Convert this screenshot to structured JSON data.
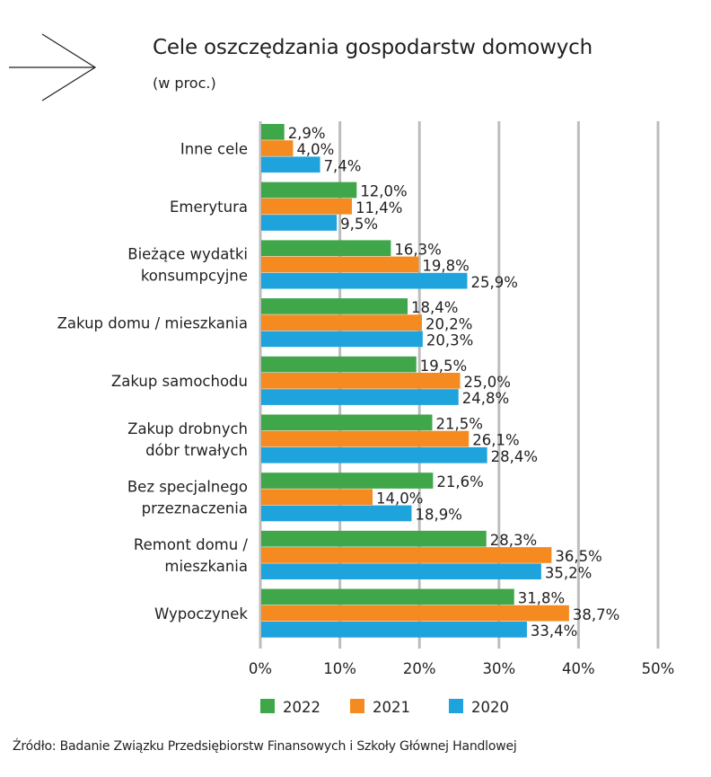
{
  "header": {
    "title": "Cele oszczędzania gospodarstw domowych",
    "subtitle": "(w proc.)",
    "icon": "arrow-right-icon"
  },
  "source": "Źródło: Badanie Związku Przedsiębiorstw Finansowych i Szkoły Głównej Handlowej",
  "chart_data": {
    "type": "bar",
    "orientation": "horizontal",
    "title": "Cele oszczędzania gospodarstw domowych",
    "subtitle": "(w proc.)",
    "xlabel": "",
    "ylabel": "",
    "xlim": [
      0,
      50
    ],
    "x_ticks": [
      "0%",
      "10%",
      "20%",
      "30%",
      "40%",
      "50%"
    ],
    "grid": true,
    "legend_position": "bottom",
    "categories": [
      [
        "Inne cele"
      ],
      [
        "Emerytura"
      ],
      [
        "Bieżące wydatki",
        "konsumpcyjne"
      ],
      [
        "Zakup domu / mieszkania"
      ],
      [
        "Zakup samochodu"
      ],
      [
        "Zakup drobnych",
        "dóbr trwałych"
      ],
      [
        "Bez specjalnego",
        "przeznaczenia"
      ],
      [
        "Remont domu /",
        "mieszkania"
      ],
      [
        "Wypoczynek"
      ]
    ],
    "series": [
      {
        "name": "2022",
        "color": "#3fa64a",
        "values": [
          2.9,
          12.0,
          16.3,
          18.4,
          19.5,
          21.5,
          21.6,
          28.3,
          31.8
        ],
        "labels": [
          "2,9%",
          "12,0%",
          "16,3%",
          "18,4%",
          "19,5%",
          "21,5%",
          "21,6%",
          "28,3%",
          "31,8%"
        ]
      },
      {
        "name": "2021",
        "color": "#f58a20",
        "values": [
          4.0,
          11.4,
          19.8,
          20.2,
          25.0,
          26.1,
          14.0,
          36.5,
          38.7
        ],
        "labels": [
          "4,0%",
          "11,4%",
          "19,8%",
          "20,2%",
          "25,0%",
          "26,1%",
          "14,0%",
          "36,5%",
          "38,7%"
        ]
      },
      {
        "name": "2020",
        "color": "#1ea3dc",
        "values": [
          7.4,
          9.5,
          25.9,
          20.3,
          24.8,
          28.4,
          18.9,
          35.2,
          33.4
        ],
        "labels": [
          "7,4%",
          "9,5%",
          "25,9%",
          "20,3%",
          "24,8%",
          "28,4%",
          "18,9%",
          "35,2%",
          "33,4%"
        ]
      }
    ]
  }
}
